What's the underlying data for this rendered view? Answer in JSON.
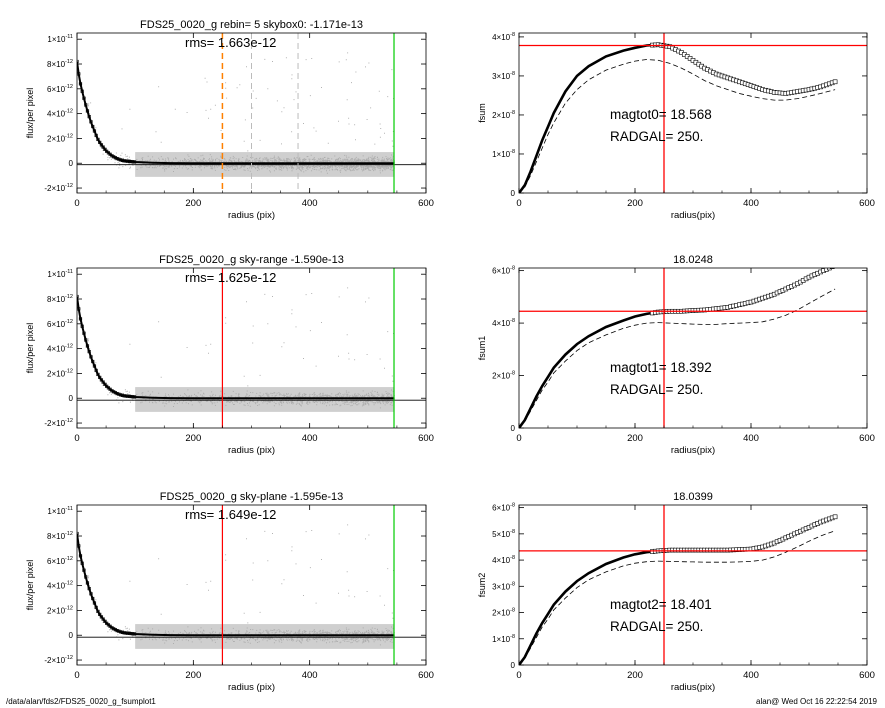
{
  "footer": {
    "path": "/data/alan/fds2/FDS25_0020_g_fsumplot1",
    "stamp": "alan@  Wed Oct 16 22:22:54 2019"
  },
  "colors": {
    "points": "#999999",
    "profile": "#000000",
    "sky_marker": "#ff0000",
    "radius_limit": "#00cc00",
    "box_marker": "#ff8000",
    "crosshair": "#ff0000"
  },
  "chart_data": [
    {
      "type": "scatter",
      "panel": "left-top",
      "title": "FDS25_0020_g rebin= 5    skybox0: -1.171e-13",
      "annotation": "rms= 1.663e-12",
      "xlabel": "radius (pix)",
      "ylabel": "flux/per pixel",
      "xlim": [
        0,
        600
      ],
      "ylim": [
        -2.4e-12,
        1.05e-11
      ],
      "xticks": [
        0,
        200,
        400,
        600
      ],
      "yticks": [
        {
          "v": 1e-11,
          "m": "1×10",
          "e": "-11"
        },
        {
          "v": 8e-12,
          "m": "8×10",
          "e": "-12"
        },
        {
          "v": 6e-12,
          "m": "6×10",
          "e": "-12"
        },
        {
          "v": 4e-12,
          "m": "4×10",
          "e": "-12"
        },
        {
          "v": 2e-12,
          "m": "2×10",
          "e": "-12"
        },
        {
          "v": 0,
          "m": "0",
          "e": ""
        },
        {
          "v": -2e-12,
          "m": "-2×10",
          "e": "-12"
        }
      ],
      "profile_x": [
        0,
        3,
        6,
        10,
        15,
        20,
        25,
        30,
        35,
        40,
        50,
        60,
        70,
        80,
        100,
        130,
        160,
        200,
        300,
        400,
        545
      ],
      "profile_y": [
        8.2e-12,
        7.2e-12,
        6.4e-12,
        5.6e-12,
        4.7e-12,
        3.9e-12,
        3.2e-12,
        2.6e-12,
        2e-12,
        1.6e-12,
        1e-12,
        6e-13,
        3.5e-13,
        2e-13,
        1e-13,
        4e-14,
        1e-14,
        0,
        0,
        0,
        0
      ],
      "sky_level": -1.171e-13,
      "vlines": [
        {
          "x": 250,
          "color": "#ff8000",
          "style": "dashed",
          "width": 1.5
        },
        {
          "x": 300,
          "color": "#bbbbbb",
          "style": "dashed",
          "width": 1
        },
        {
          "x": 380,
          "color": "#bbbbbb",
          "style": "dashed",
          "width": 1
        },
        {
          "x": 545,
          "color": "#00cc00",
          "style": "solid",
          "width": 1.2
        }
      ],
      "scatter_band": {
        "rmax": 545,
        "density": 3500
      }
    },
    {
      "type": "line",
      "panel": "right-top",
      "title": "",
      "annotation_lines": [
        "magtot0=  18.568",
        "RADGAL=    250."
      ],
      "xlabel": "radius(pix)",
      "ylabel": "fsum",
      "xlim": [
        0,
        600
      ],
      "ylim": [
        0,
        4.1e-08
      ],
      "xticks": [
        0,
        200,
        400,
        600
      ],
      "yticks": [
        {
          "v": 0,
          "m": "0",
          "e": ""
        },
        {
          "v": 1e-08,
          "m": "1×10",
          "e": "-8"
        },
        {
          "v": 2e-08,
          "m": "2×10",
          "e": "-8"
        },
        {
          "v": 3e-08,
          "m": "3×10",
          "e": "-8"
        },
        {
          "v": 4e-08,
          "m": "4×10",
          "e": "-8"
        }
      ],
      "curve_x": [
        0,
        10,
        20,
        30,
        40,
        50,
        60,
        80,
        100,
        120,
        150,
        180,
        200,
        220,
        240,
        260,
        280,
        300,
        320,
        340,
        360,
        380,
        400,
        420,
        440,
        460,
        480,
        500,
        520,
        545
      ],
      "curve_y": [
        0,
        2e-09,
        5.5e-09,
        9.5e-09,
        1.35e-08,
        1.7e-08,
        2.05e-08,
        2.6e-08,
        3e-08,
        3.25e-08,
        3.5e-08,
        3.65e-08,
        3.72e-08,
        3.78e-08,
        3.8e-08,
        3.75e-08,
        3.6e-08,
        3.4e-08,
        3.2e-08,
        3.05e-08,
        2.95e-08,
        2.85e-08,
        2.75e-08,
        2.65e-08,
        2.58e-08,
        2.55e-08,
        2.6e-08,
        2.65e-08,
        2.72e-08,
        2.85e-08
      ],
      "lower_curve_y": [
        0,
        1.5e-09,
        4.5e-09,
        8e-09,
        1.15e-08,
        1.5e-08,
        1.8e-08,
        2.3e-08,
        2.65e-08,
        2.9e-08,
        3.15e-08,
        3.3e-08,
        3.38e-08,
        3.42e-08,
        3.4e-08,
        3.32e-08,
        3.2e-08,
        3.05e-08,
        2.88e-08,
        2.75e-08,
        2.65e-08,
        2.55e-08,
        2.48e-08,
        2.42e-08,
        2.38e-08,
        2.38e-08,
        2.42e-08,
        2.48e-08,
        2.55e-08,
        2.65e-08
      ],
      "marker_from": 230,
      "crosshair": {
        "x": 250,
        "y": 3.78e-08
      }
    },
    {
      "type": "scatter",
      "panel": "left-middle",
      "title": "FDS25_0020_g sky-range -1.590e-13",
      "annotation": "rms= 1.625e-12",
      "xlabel": "radius (pix)",
      "ylabel": "flux/per pixel",
      "xlim": [
        0,
        600
      ],
      "ylim": [
        -2.4e-12,
        1.05e-11
      ],
      "xticks": [
        0,
        200,
        400,
        600
      ],
      "yticks": [
        {
          "v": 1e-11,
          "m": "1×10",
          "e": "-11"
        },
        {
          "v": 8e-12,
          "m": "8×10",
          "e": "-12"
        },
        {
          "v": 6e-12,
          "m": "6×10",
          "e": "-12"
        },
        {
          "v": 4e-12,
          "m": "4×10",
          "e": "-12"
        },
        {
          "v": 2e-12,
          "m": "2×10",
          "e": "-12"
        },
        {
          "v": 0,
          "m": "0",
          "e": ""
        },
        {
          "v": -2e-12,
          "m": "-2×10",
          "e": "-12"
        }
      ],
      "profile_x": [
        0,
        3,
        6,
        10,
        15,
        20,
        25,
        30,
        35,
        40,
        50,
        60,
        70,
        80,
        100,
        130,
        160,
        200,
        300,
        400,
        545
      ],
      "profile_y": [
        8.2e-12,
        7.2e-12,
        6.4e-12,
        5.6e-12,
        4.7e-12,
        3.9e-12,
        3.2e-12,
        2.6e-12,
        2e-12,
        1.6e-12,
        1e-12,
        6e-13,
        3.5e-13,
        2e-13,
        1e-13,
        4e-14,
        1e-14,
        0,
        0,
        0,
        0
      ],
      "sky_level": -1.59e-13,
      "vlines": [
        {
          "x": 250,
          "color": "#ff0000",
          "style": "solid",
          "width": 1.2
        },
        {
          "x": 545,
          "color": "#00cc00",
          "style": "solid",
          "width": 1.2
        }
      ],
      "scatter_band": {
        "rmax": 545,
        "density": 3500
      }
    },
    {
      "type": "line",
      "panel": "right-middle",
      "title": "18.0248",
      "annotation_lines": [
        "magtot1=  18.392",
        "RADGAL=    250."
      ],
      "xlabel": "radius(pix)",
      "ylabel": "fsum1",
      "xlim": [
        0,
        600
      ],
      "ylim": [
        0,
        6.1e-08
      ],
      "xticks": [
        0,
        200,
        400,
        600
      ],
      "yticks": [
        {
          "v": 0,
          "m": "0",
          "e": ""
        },
        {
          "v": 2e-08,
          "m": "2×10",
          "e": "-8"
        },
        {
          "v": 4e-08,
          "m": "4×10",
          "e": "-8"
        },
        {
          "v": 6e-08,
          "m": "6×10",
          "e": "-8"
        }
      ],
      "curve_x": [
        0,
        10,
        20,
        30,
        40,
        50,
        60,
        80,
        100,
        120,
        150,
        180,
        200,
        220,
        240,
        260,
        280,
        300,
        320,
        340,
        360,
        380,
        400,
        420,
        440,
        460,
        480,
        500,
        520,
        545
      ],
      "curve_y": [
        0,
        3e-09,
        7.5e-09,
        1.2e-08,
        1.6e-08,
        1.95e-08,
        2.3e-08,
        2.8e-08,
        3.2e-08,
        3.5e-08,
        3.85e-08,
        4.1e-08,
        4.25e-08,
        4.35e-08,
        4.42e-08,
        4.45e-08,
        4.45e-08,
        4.48e-08,
        4.5e-08,
        4.55e-08,
        4.6e-08,
        4.7e-08,
        4.8e-08,
        4.95e-08,
        5.1e-08,
        5.3e-08,
        5.5e-08,
        5.75e-08,
        5.95e-08,
        6.2e-08
      ],
      "lower_curve_y": [
        0,
        2.5e-09,
        6.5e-09,
        1.05e-08,
        1.45e-08,
        1.75e-08,
        2.1e-08,
        2.55e-08,
        2.95e-08,
        3.25e-08,
        3.55e-08,
        3.8e-08,
        3.92e-08,
        4e-08,
        4.02e-08,
        4e-08,
        3.98e-08,
        3.96e-08,
        3.95e-08,
        3.95e-08,
        3.98e-08,
        4e-08,
        4.02e-08,
        4.05e-08,
        4.15e-08,
        4.3e-08,
        4.5e-08,
        4.75e-08,
        5e-08,
        5.3e-08
      ],
      "marker_from": 230,
      "crosshair": {
        "x": 250,
        "y": 4.45e-08
      }
    },
    {
      "type": "scatter",
      "panel": "left-bottom",
      "title": "FDS25_0020_g sky-plane -1.595e-13",
      "annotation": "rms= 1.649e-12",
      "xlabel": "radius (pix)",
      "ylabel": "flux/per pixel",
      "xlim": [
        0,
        600
      ],
      "ylim": [
        -2.4e-12,
        1.05e-11
      ],
      "xticks": [
        0,
        200,
        400,
        600
      ],
      "yticks": [
        {
          "v": 1e-11,
          "m": "1×10",
          "e": "-11"
        },
        {
          "v": 8e-12,
          "m": "8×10",
          "e": "-12"
        },
        {
          "v": 6e-12,
          "m": "6×10",
          "e": "-12"
        },
        {
          "v": 4e-12,
          "m": "4×10",
          "e": "-12"
        },
        {
          "v": 2e-12,
          "m": "2×10",
          "e": "-12"
        },
        {
          "v": 0,
          "m": "0",
          "e": ""
        },
        {
          "v": -2e-12,
          "m": "-2×10",
          "e": "-12"
        }
      ],
      "profile_x": [
        0,
        3,
        6,
        10,
        15,
        20,
        25,
        30,
        35,
        40,
        50,
        60,
        70,
        80,
        100,
        130,
        160,
        200,
        300,
        400,
        545
      ],
      "profile_y": [
        8.2e-12,
        7.2e-12,
        6.4e-12,
        5.6e-12,
        4.7e-12,
        3.9e-12,
        3.2e-12,
        2.6e-12,
        2e-12,
        1.6e-12,
        1e-12,
        6e-13,
        3.5e-13,
        2e-13,
        1e-13,
        4e-14,
        1e-14,
        0,
        0,
        0,
        0
      ],
      "sky_level": -1.595e-13,
      "vlines": [
        {
          "x": 250,
          "color": "#ff0000",
          "style": "solid",
          "width": 1.2
        },
        {
          "x": 545,
          "color": "#00cc00",
          "style": "solid",
          "width": 1.2
        }
      ],
      "scatter_band": {
        "rmax": 545,
        "density": 3500
      }
    },
    {
      "type": "line",
      "panel": "right-bottom",
      "title": "18.0399",
      "annotation_lines": [
        "magtot2=  18.401",
        "RADGAL=    250."
      ],
      "xlabel": "radius(pix)",
      "ylabel": "fsum2",
      "xlim": [
        0,
        600
      ],
      "ylim": [
        0,
        6.1e-08
      ],
      "xticks": [
        0,
        200,
        400,
        600
      ],
      "yticks": [
        {
          "v": 0,
          "m": "0",
          "e": ""
        },
        {
          "v": 1e-08,
          "m": "1×10",
          "e": "-8"
        },
        {
          "v": 2e-08,
          "m": "2×10",
          "e": "-8"
        },
        {
          "v": 3e-08,
          "m": "3×10",
          "e": "-8"
        },
        {
          "v": 4e-08,
          "m": "4×10",
          "e": "-8"
        },
        {
          "v": 5e-08,
          "m": "5×10",
          "e": "-8"
        },
        {
          "v": 6e-08,
          "m": "6×10",
          "e": "-8"
        }
      ],
      "curve_x": [
        0,
        10,
        20,
        30,
        40,
        50,
        60,
        80,
        100,
        120,
        150,
        180,
        200,
        220,
        240,
        260,
        280,
        300,
        320,
        340,
        360,
        380,
        400,
        420,
        440,
        460,
        480,
        500,
        520,
        545
      ],
      "curve_y": [
        0,
        3e-09,
        7.5e-09,
        1.2e-08,
        1.6e-08,
        1.95e-08,
        2.3e-08,
        2.8e-08,
        3.2e-08,
        3.5e-08,
        3.85e-08,
        4.1e-08,
        4.22e-08,
        4.3e-08,
        4.35e-08,
        4.38e-08,
        4.38e-08,
        4.38e-08,
        4.38e-08,
        4.38e-08,
        4.38e-08,
        4.4e-08,
        4.42e-08,
        4.5e-08,
        4.65e-08,
        4.85e-08,
        5.05e-08,
        5.25e-08,
        5.45e-08,
        5.65e-08
      ],
      "lower_curve_y": [
        0,
        2.5e-09,
        6.5e-09,
        1.05e-08,
        1.45e-08,
        1.75e-08,
        2.1e-08,
        2.55e-08,
        2.95e-08,
        3.25e-08,
        3.55e-08,
        3.78e-08,
        3.88e-08,
        3.94e-08,
        3.96e-08,
        3.95e-08,
        3.94e-08,
        3.93e-08,
        3.92e-08,
        3.92e-08,
        3.92e-08,
        3.93e-08,
        3.95e-08,
        4e-08,
        4.12e-08,
        4.3e-08,
        4.5e-08,
        4.72e-08,
        4.92e-08,
        5.12e-08
      ],
      "marker_from": 230,
      "crosshair": {
        "x": 250,
        "y": 4.35e-08
      }
    }
  ]
}
